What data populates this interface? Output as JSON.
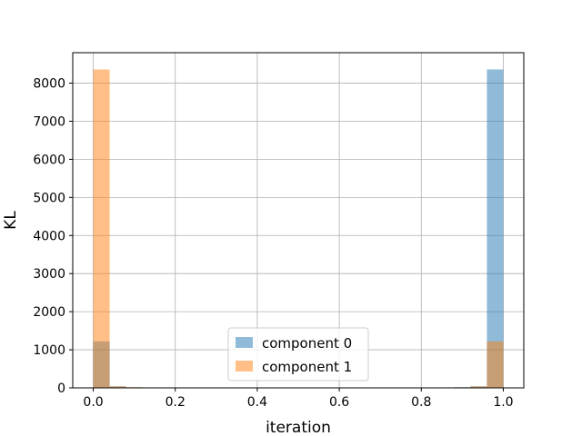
{
  "chart_data": {
    "type": "bar",
    "title": "",
    "xlabel": "iteration",
    "ylabel": "KL",
    "xlim": [
      -0.05,
      1.05
    ],
    "ylim": [
      0,
      8800
    ],
    "xticks": [
      "0.0",
      "0.2",
      "0.4",
      "0.6",
      "0.8",
      "1.0"
    ],
    "yticks": [
      "0",
      "1000",
      "2000",
      "3000",
      "4000",
      "5000",
      "6000",
      "7000",
      "8000"
    ],
    "grid": true,
    "legend_position": "lower-center",
    "bin_edges": [
      0.0,
      0.04,
      0.08,
      0.12,
      0.16,
      0.2,
      0.24,
      0.28,
      0.32,
      0.36,
      0.4,
      0.44,
      0.48,
      0.52,
      0.56,
      0.6,
      0.64,
      0.68,
      0.72,
      0.76,
      0.8,
      0.84,
      0.88,
      0.92,
      0.96,
      1.0
    ],
    "series": [
      {
        "name": "component 0",
        "color": "#1f77b4",
        "values": [
          1220,
          40,
          15,
          8,
          5,
          3,
          2,
          10,
          3,
          2,
          1,
          1,
          1,
          1,
          1,
          1,
          2,
          3,
          2,
          4,
          8,
          12,
          18,
          40,
          8360
        ]
      },
      {
        "name": "component 1",
        "color": "#ff7f0e",
        "values": [
          8360,
          40,
          18,
          12,
          8,
          4,
          2,
          3,
          2,
          1,
          1,
          1,
          1,
          1,
          1,
          1,
          2,
          10,
          2,
          3,
          5,
          8,
          15,
          40,
          1220
        ]
      }
    ]
  }
}
